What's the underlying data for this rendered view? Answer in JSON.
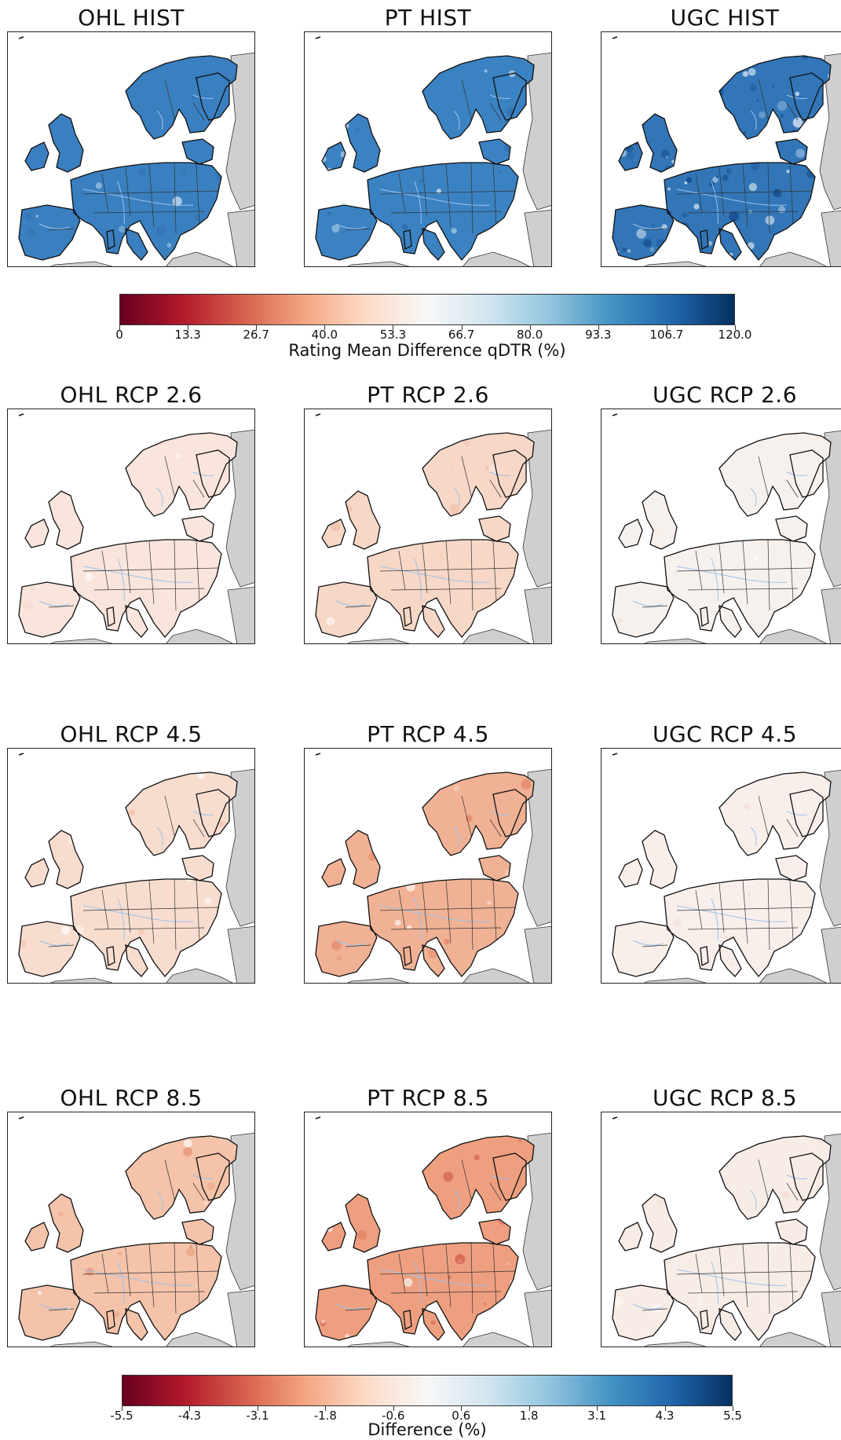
{
  "panels": [
    {
      "id": "ohl-hist",
      "title": "OHL HIST",
      "land": "#3a7fbf",
      "noise": 0.05,
      "detail": "#2d6cae"
    },
    {
      "id": "pt-hist",
      "title": "PT HIST",
      "land": "#3b82c2",
      "noise": 0.08,
      "detail": "#2a67a8"
    },
    {
      "id": "ugc-hist",
      "title": "UGC HIST",
      "land": "#3276b8",
      "noise": 0.35,
      "detail": "#0c3f7e"
    },
    {
      "id": "ohl-rcp26",
      "title": "OHL RCP 2.6",
      "land": "#f9e5dc",
      "noise": 0.06,
      "detail": "#f4cdbb"
    },
    {
      "id": "pt-rcp26",
      "title": "PT RCP 2.6",
      "land": "#f7d7c6",
      "noise": 0.08,
      "detail": "#f1b89e"
    },
    {
      "id": "ugc-rcp26",
      "title": "UGC RCP 2.6",
      "land": "#f7f1ee",
      "noise": 0.04,
      "detail": "#f3e1d8"
    },
    {
      "id": "ohl-rcp45",
      "title": "OHL RCP 4.5",
      "land": "#f8ddcf",
      "noise": 0.06,
      "detail": "#f2c2aa"
    },
    {
      "id": "pt-rcp45",
      "title": "PT RCP 4.5",
      "land": "#f1b194",
      "noise": 0.1,
      "detail": "#e07c5f"
    },
    {
      "id": "ugc-rcp45",
      "title": "UGC RCP 4.5",
      "land": "#f8efeb",
      "noise": 0.04,
      "detail": "#f3ddd3"
    },
    {
      "id": "ohl-rcp85",
      "title": "OHL RCP 8.5",
      "land": "#f4c3aa",
      "noise": 0.1,
      "detail": "#e48a6b"
    },
    {
      "id": "pt-rcp85",
      "title": "PT RCP 8.5",
      "land": "#ee9f7f",
      "noise": 0.12,
      "detail": "#cf4e3e"
    },
    {
      "id": "ugc-rcp85",
      "title": "UGC RCP 8.5",
      "land": "#f8ece6",
      "noise": 0.05,
      "detail": "#f2d6c9"
    }
  ],
  "colors": {
    "ocean": "#ffffff",
    "non_data_land": "#cfcfcf",
    "coast": "#111111",
    "borders": "#333333",
    "rivers": "#9cc2ea"
  },
  "colorbar_top": {
    "label": "Rating Mean Difference qDTR (%)",
    "ticks": [
      "0",
      "13.3",
      "26.7",
      "40.0",
      "53.3",
      "66.7",
      "80.0",
      "93.3",
      "106.7",
      "120.0"
    ],
    "min": 0,
    "max": 120
  },
  "colorbar_bottom": {
    "label": "Difference (%)",
    "ticks": [
      "-5.5",
      "-4.3",
      "-3.1",
      "-1.8",
      "-0.6",
      "0.6",
      "1.8",
      "3.1",
      "4.3",
      "5.5"
    ],
    "min": -5.5,
    "max": 5.5
  },
  "colormap": [
    "#67001f",
    "#b2182b",
    "#d6604d",
    "#f4a582",
    "#fddbc7",
    "#f7f7f7",
    "#d1e5f0",
    "#92c5de",
    "#4393c3",
    "#2166ac",
    "#053061"
  ]
}
